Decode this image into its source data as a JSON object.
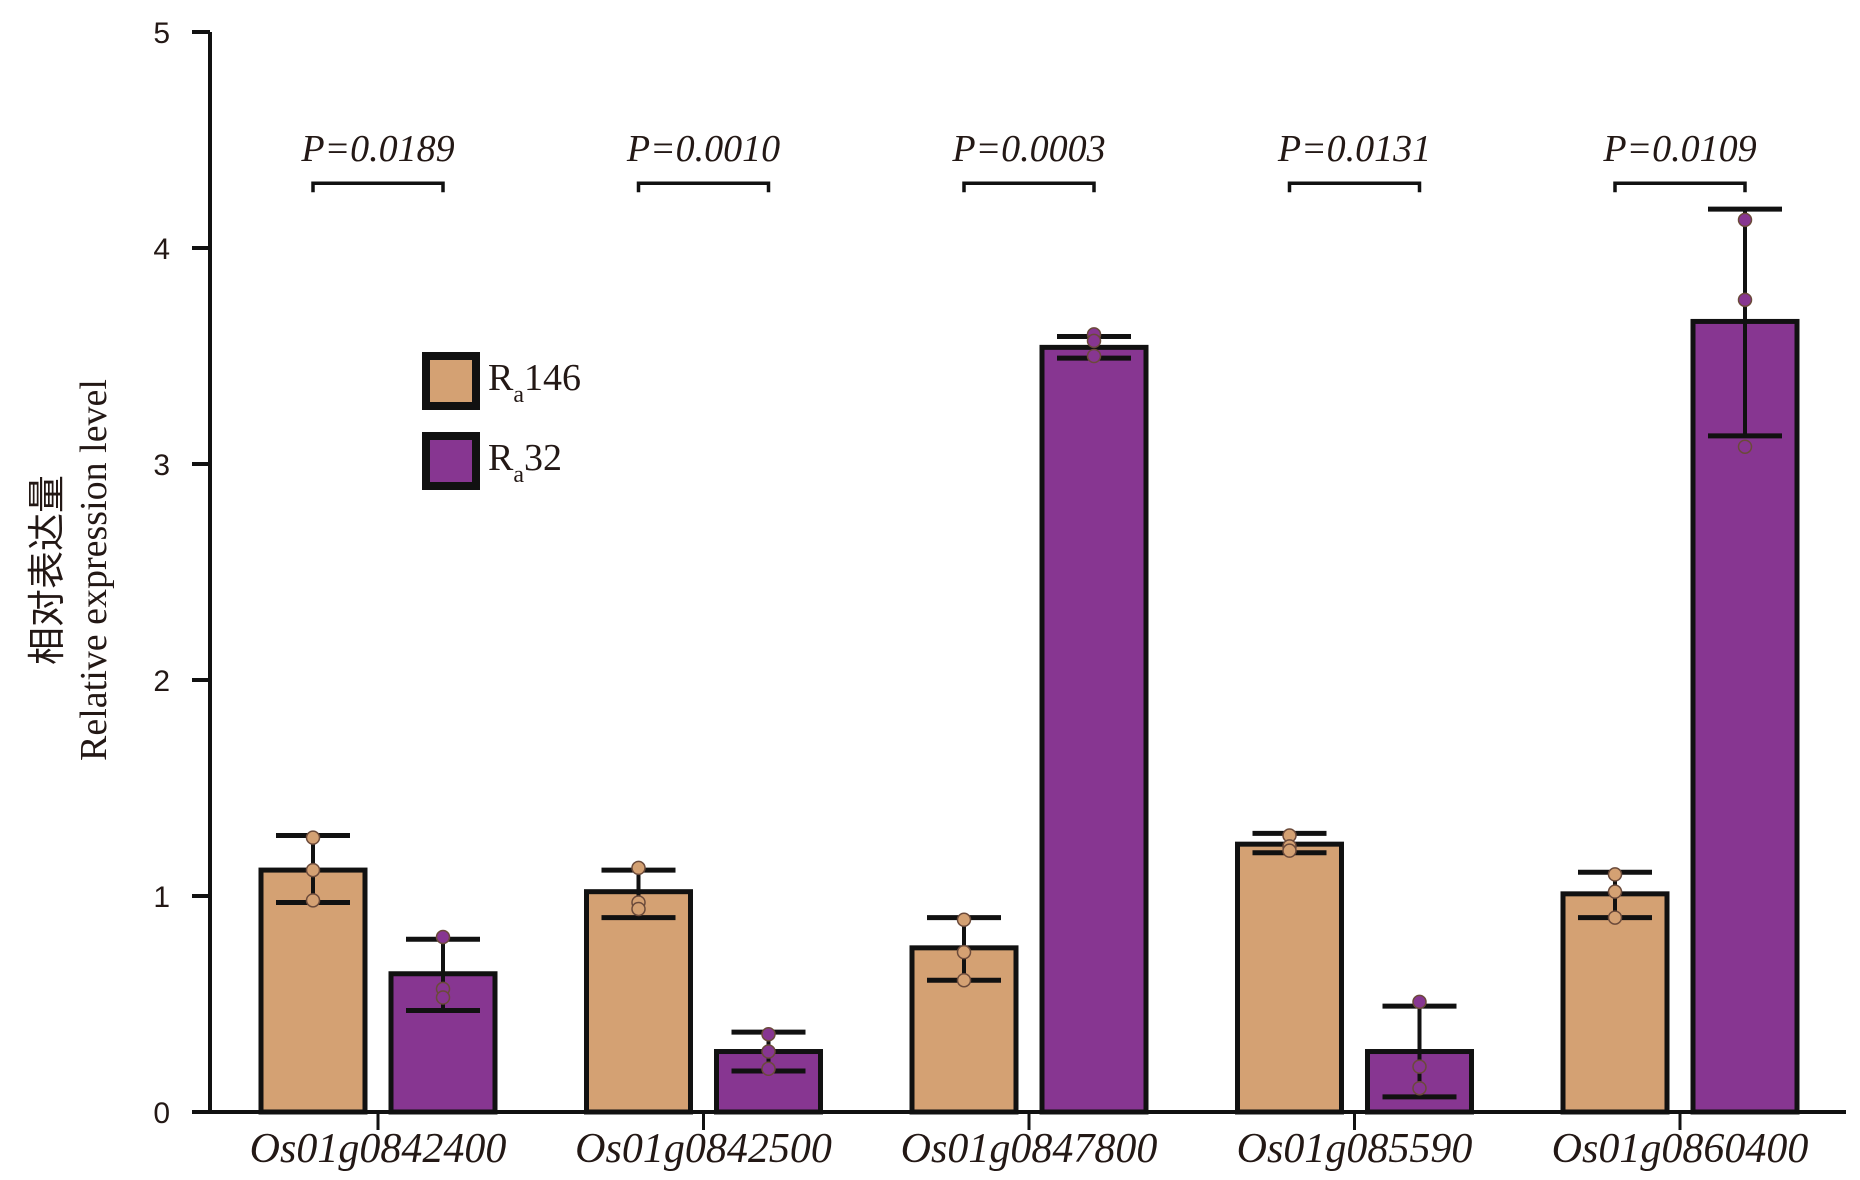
{
  "chart_data": {
    "type": "bar",
    "title": "",
    "xlabel": "",
    "ylabel_cn": "相对表达量",
    "ylabel": "Relative expression level",
    "ylim": [
      0,
      5
    ],
    "yticks": [
      "0",
      "1",
      "2",
      "3",
      "4",
      "5"
    ],
    "grid": false,
    "legend_position": "upper-left",
    "categories": [
      "Os01g0842400",
      "Os01g0842500",
      "Os01g0847800",
      "Os01g085590",
      "Os01g0860400"
    ],
    "series": [
      {
        "name": "Ra146",
        "legend_main": "R",
        "legend_sub": "a",
        "legend_tail": "146",
        "color": "#D4A173",
        "values": [
          1.12,
          1.02,
          0.76,
          1.24,
          1.01
        ],
        "err_upper": [
          1.28,
          1.12,
          0.9,
          1.29,
          1.11
        ],
        "err_lower": [
          0.97,
          0.9,
          0.61,
          1.2,
          0.9
        ],
        "points": [
          [
            1.27,
            1.12,
            0.98
          ],
          [
            1.13,
            0.97,
            0.94
          ],
          [
            0.89,
            0.74,
            0.61
          ],
          [
            1.28,
            1.23,
            1.21
          ],
          [
            1.1,
            1.02,
            0.9
          ]
        ]
      },
      {
        "name": "Ra32",
        "legend_main": "R",
        "legend_sub": "a",
        "legend_tail": "32",
        "color": "#873691",
        "values": [
          0.64,
          0.28,
          3.54,
          0.28,
          3.66
        ],
        "err_upper": [
          0.8,
          0.37,
          3.59,
          0.49,
          4.18
        ],
        "err_lower": [
          0.47,
          0.19,
          3.49,
          0.07,
          3.13
        ],
        "points": [
          [
            0.81,
            0.57,
            0.53
          ],
          [
            0.36,
            0.28,
            0.2
          ],
          [
            3.6,
            3.57,
            3.5
          ],
          [
            0.51,
            0.21,
            0.11
          ],
          [
            4.13,
            3.76,
            3.08
          ]
        ]
      }
    ],
    "annotations": [
      "P=0.0189",
      "P=0.0010",
      "P=0.0003",
      "P=0.0131",
      "P=0.0109"
    ],
    "annotation_level": 4.3
  }
}
